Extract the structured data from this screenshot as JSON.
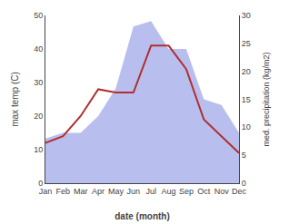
{
  "chart_data": {
    "type": "line",
    "xlabel": "date (month)",
    "ylabel": "max temp (C)",
    "y2label": "med. precipitation (kg/m2)",
    "categories": [
      "Jan",
      "Feb",
      "Mar",
      "Apr",
      "May",
      "Jun",
      "Jul",
      "Aug",
      "Sep",
      "Oct",
      "Nov",
      "Dec"
    ],
    "series": [
      {
        "type": "area",
        "axis": "y2",
        "color": "#b8bfee",
        "values": [
          8,
          9,
          9,
          12,
          17,
          28,
          29,
          24,
          24,
          15,
          14,
          9
        ]
      },
      {
        "type": "line",
        "color": "#b03030",
        "values": [
          12,
          14,
          20,
          28,
          27,
          27,
          41,
          41,
          34,
          19,
          14,
          9
        ]
      }
    ],
    "ylim": [
      0,
      50
    ],
    "yticks": [
      0,
      10,
      20,
      30,
      40,
      50
    ],
    "y2lim": [
      0,
      30
    ],
    "y2ticks": [
      0,
      5,
      10,
      15,
      20,
      25,
      30
    ],
    "grid": false
  }
}
